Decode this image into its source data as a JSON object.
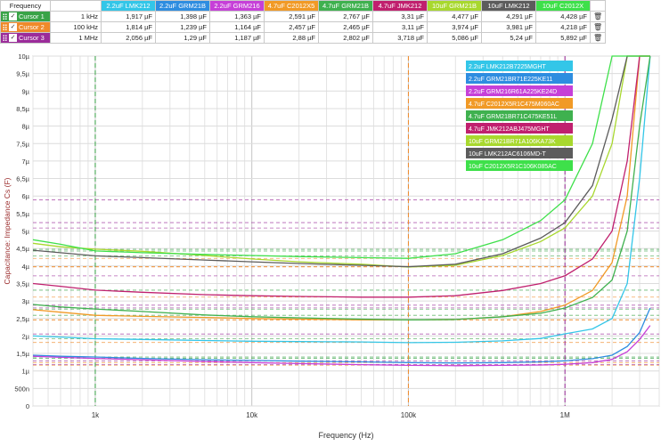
{
  "cursor_table": {
    "header_label": "Frequency",
    "delete_icon": "trash-icon",
    "columns": [
      {
        "label": "2.2uF LMK212",
        "color": "#33c6e8"
      },
      {
        "label": "2.2uF GRM21B",
        "color": "#2e8de0"
      },
      {
        "label": "2.2uF GRM216",
        "color": "#c640d8"
      },
      {
        "label": "4.7uF C2012X5",
        "color": "#f19a26"
      },
      {
        "label": "4.7uF GRM21B",
        "color": "#3fb14f"
      },
      {
        "label": "4.7uF JMK212",
        "color": "#c0206e"
      },
      {
        "label": "10uF GRM21B",
        "color": "#a8d82e"
      },
      {
        "label": "10uF LMK212",
        "color": "#5c5c5c"
      },
      {
        "label": "10uF C2012X",
        "color": "#3ee04a"
      }
    ],
    "rows": [
      {
        "name": "Cursor 1",
        "color": "#39a347",
        "freq": "1 kHz",
        "values": [
          "1,917 µF",
          "1,398 µF",
          "1,363 µF",
          "2,591 µF",
          "2,767 µF",
          "3,31 µF",
          "4,477 µF",
          "4,291 µF",
          "4,428 µF"
        ]
      },
      {
        "name": "Cursor 2",
        "color": "#ef8a2a",
        "freq": "100 kHz",
        "values": [
          "1,814 µF",
          "1,239 µF",
          "1,164 µF",
          "2,457 µF",
          "2,465 µF",
          "3,11 µF",
          "3,974 µF",
          "3,981 µF",
          "4,218 µF"
        ]
      },
      {
        "name": "Cursor 3",
        "color": "#9b2c9a",
        "freq": "1 MHz",
        "values": [
          "2,056 µF",
          "1,29 µF",
          "1,187 µF",
          "2,88 µF",
          "2,802 µF",
          "3,718 µF",
          "5,086 µF",
          "5,24 µF",
          "5,892 µF"
        ]
      }
    ]
  },
  "chart_data": {
    "type": "line",
    "xlabel": "Frequency (Hz)",
    "ylabel": "Capacitance: Impedance Cs (F)",
    "x_scale": "log",
    "xlim": [
      400,
      4000000
    ],
    "ylim": [
      0,
      1e-05
    ],
    "x_tick_labels": [
      {
        "value": 1000,
        "label": "1k"
      },
      {
        "value": 10000,
        "label": "10k"
      },
      {
        "value": 100000,
        "label": "100k"
      },
      {
        "value": 1000000,
        "label": "1M"
      }
    ],
    "y_tick_labels": [
      "0",
      "500n",
      "1µ",
      "1,5µ",
      "2µ",
      "2,5µ",
      "3µ",
      "3,5µ",
      "4µ",
      "4,5µ",
      "5µ",
      "5,5µ",
      "6µ",
      "6,5µ",
      "7µ",
      "7,5µ",
      "8µ",
      "8,5µ",
      "9µ",
      "9,5µ",
      "10µ"
    ],
    "cursors": [
      {
        "name": "Cursor 1",
        "x": 1000,
        "color": "#39a347"
      },
      {
        "name": "Cursor 2",
        "x": 100000,
        "color": "#ef8a2a"
      },
      {
        "name": "Cursor 3",
        "x": 1000000,
        "color": "#9b2c9a"
      }
    ],
    "legend_position": "top-right",
    "x": [
      400,
      600,
      1000,
      2000,
      5000,
      10000,
      20000,
      50000,
      100000,
      200000,
      400000,
      700000,
      1000000,
      1500000,
      2000000,
      2500000,
      3000000,
      3500000
    ],
    "series": [
      {
        "name": "2.2uF LMK212B7225MGHT",
        "color": "#33c6e8",
        "values": [
          2e-06,
          1.97e-06,
          1.92e-06,
          1.9e-06,
          1.87e-06,
          1.85e-06,
          1.84e-06,
          1.83e-06,
          1.81e-06,
          1.82e-06,
          1.86e-06,
          1.93e-06,
          2.06e-06,
          2.2e-06,
          2.5e-06,
          3.5e-06,
          6.5e-06,
          1e-05
        ]
      },
      {
        "name": "2.2uF GRM21BR71E225KE11",
        "color": "#2e8de0",
        "values": [
          1.45e-06,
          1.42e-06,
          1.4e-06,
          1.36e-06,
          1.32e-06,
          1.3e-06,
          1.28e-06,
          1.26e-06,
          1.24e-06,
          1.23e-06,
          1.24e-06,
          1.26e-06,
          1.29e-06,
          1.35e-06,
          1.45e-06,
          1.7e-06,
          2.1e-06,
          2.8e-06
        ]
      },
      {
        "name": "2.2uF GRM216R61A225KE24D",
        "color": "#c640d8",
        "values": [
          1.42e-06,
          1.39e-06,
          1.36e-06,
          1.32e-06,
          1.27e-06,
          1.24e-06,
          1.21e-06,
          1.18e-06,
          1.16e-06,
          1.15e-06,
          1.16e-06,
          1.17e-06,
          1.19e-06,
          1.24e-06,
          1.33e-06,
          1.55e-06,
          1.9e-06,
          2.3e-06
        ]
      },
      {
        "name": "4.7uF C2012X5R1C475M060AC",
        "color": "#f19a26",
        "values": [
          2.75e-06,
          2.68e-06,
          2.59e-06,
          2.56e-06,
          2.53e-06,
          2.5e-06,
          2.48e-06,
          2.46e-06,
          2.46e-06,
          2.47e-06,
          2.55e-06,
          2.7e-06,
          2.88e-06,
          3.3e-06,
          4.1e-06,
          6e-06,
          1e-05,
          1e-05
        ]
      },
      {
        "name": "4.7uF GRM21BR71C475KE51L",
        "color": "#3fb14f",
        "values": [
          2.9e-06,
          2.83e-06,
          2.77e-06,
          2.7e-06,
          2.6e-06,
          2.55e-06,
          2.52e-06,
          2.48e-06,
          2.46e-06,
          2.47e-06,
          2.55e-06,
          2.65e-06,
          2.8e-06,
          3.1e-06,
          3.6e-06,
          5e-06,
          8e-06,
          1e-05
        ]
      },
      {
        "name": "4.7uF JMK212ABJ475MGHT",
        "color": "#c0206e",
        "values": [
          3.5e-06,
          3.42e-06,
          3.31e-06,
          3.25e-06,
          3.18e-06,
          3.15e-06,
          3.13e-06,
          3.11e-06,
          3.11e-06,
          3.15e-06,
          3.3e-06,
          3.5e-06,
          3.72e-06,
          4.2e-06,
          5e-06,
          7e-06,
          1e-05,
          1e-05
        ]
      },
      {
        "name": "10uF GRM21BR71A106KA73K",
        "color": "#a8d82e",
        "values": [
          4.65e-06,
          4.55e-06,
          4.48e-06,
          4.42e-06,
          4.3e-06,
          4.2e-06,
          4.12e-06,
          4.05e-06,
          3.97e-06,
          4.02e-06,
          4.3e-06,
          4.7e-06,
          5.09e-06,
          6e-06,
          7.5e-06,
          1e-05,
          1e-05,
          1e-05
        ]
      },
      {
        "name": "10uF LMK212AC6106MD-T",
        "color": "#5c5c5c",
        "values": [
          4.45e-06,
          4.38e-06,
          4.29e-06,
          4.24e-06,
          4.17e-06,
          4.12e-06,
          4.07e-06,
          4.02e-06,
          3.98e-06,
          4.05e-06,
          4.35e-06,
          4.8e-06,
          5.24e-06,
          6.3e-06,
          8.2e-06,
          1e-05,
          1e-05,
          1e-05
        ]
      },
      {
        "name": "10uF C2012X5R1C106K085AC",
        "color": "#3ee04a",
        "values": [
          4.75e-06,
          4.62e-06,
          4.43e-06,
          4.38e-06,
          4.33e-06,
          4.3e-06,
          4.27e-06,
          4.24e-06,
          4.22e-06,
          4.35e-06,
          4.75e-06,
          5.3e-06,
          5.89e-06,
          7.5e-06,
          1e-05,
          1e-05,
          1e-05,
          1e-05
        ]
      }
    ]
  }
}
